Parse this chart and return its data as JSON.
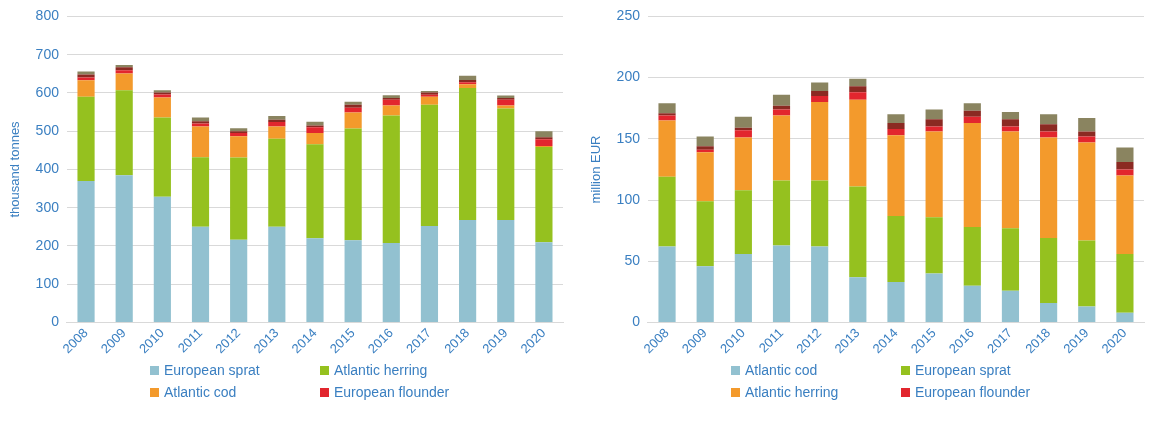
{
  "chart_data": [
    {
      "type": "bar",
      "stacked": true,
      "ylabel": "thousand tonnes",
      "categories": [
        "2008",
        "2009",
        "2010",
        "2011",
        "2012",
        "2013",
        "2014",
        "2015",
        "2016",
        "2017",
        "2018",
        "2019",
        "2020"
      ],
      "ylim": [
        0,
        800
      ],
      "yticks": [
        0,
        100,
        200,
        300,
        400,
        500,
        600,
        700,
        800
      ],
      "grid": "y",
      "legend": "bottom",
      "series": [
        {
          "name": "European sprat",
          "color": "#92c1d0",
          "values": [
            370,
            385,
            329,
            250,
            216,
            250,
            220,
            215,
            208,
            252,
            268,
            268,
            210
          ]
        },
        {
          "name": "Atlantic herring",
          "color": "#95c11f",
          "values": [
            220,
            222,
            207,
            182,
            215,
            230,
            246,
            292,
            333,
            317,
            345,
            291,
            249
          ]
        },
        {
          "name": "Atlantic cod",
          "color": "#f39a2c",
          "values": [
            43,
            44,
            52,
            80,
            56,
            32,
            29,
            42,
            26,
            21,
            10,
            8,
            2
          ]
        },
        {
          "name": "European flounder",
          "color": "#e2262e",
          "values": [
            7,
            8,
            8,
            8,
            8,
            12,
            15,
            12,
            15,
            5,
            5,
            15,
            18
          ]
        },
        {
          "color": "#8b2a22",
          "values": [
            8,
            8,
            5,
            6,
            5,
            6,
            5,
            8,
            5,
            6,
            6,
            5,
            5
          ]
        },
        {
          "color": "#8a8460",
          "values": [
            8,
            6,
            6,
            10,
            8,
            10,
            10,
            8,
            7,
            4,
            11,
            6,
            16
          ]
        }
      ]
    },
    {
      "type": "bar",
      "stacked": true,
      "ylabel": "million EUR",
      "categories": [
        "2008",
        "2009",
        "2010",
        "2011",
        "2012",
        "2013",
        "2014",
        "2015",
        "2016",
        "2017",
        "2018",
        "2019",
        "2020"
      ],
      "ylim": [
        0,
        250
      ],
      "yticks": [
        0,
        50,
        100,
        150,
        200,
        250
      ],
      "grid": "y",
      "legend": "bottom",
      "series": [
        {
          "name": "Atlantic cod",
          "color": "#92c1d0",
          "values": [
            62,
            46,
            56,
            63,
            62,
            37,
            33,
            40,
            30,
            26,
            16,
            13,
            8
          ]
        },
        {
          "name": "European sprat",
          "color": "#95c11f",
          "values": [
            57,
            53,
            52,
            53,
            54,
            74,
            54,
            46,
            48,
            51,
            53,
            54,
            48
          ]
        },
        {
          "name": "Atlantic herring",
          "color": "#f39a2c",
          "values": [
            46,
            40,
            43,
            53,
            64,
            71,
            66,
            70,
            85,
            79,
            82,
            80,
            64
          ]
        },
        {
          "name": "European flounder",
          "color": "#e2262e",
          "values": [
            4,
            2,
            6,
            5,
            5,
            6,
            5,
            4,
            5,
            4,
            5,
            5,
            5
          ]
        },
        {
          "color": "#8b2a22",
          "values": [
            2,
            3,
            2,
            3,
            4,
            5,
            5,
            6,
            5,
            6,
            6,
            4,
            6
          ]
        },
        {
          "color": "#8a8460",
          "values": [
            8,
            8,
            9,
            9,
            7,
            6,
            7,
            8,
            6,
            6,
            8,
            11,
            12
          ]
        }
      ]
    }
  ]
}
